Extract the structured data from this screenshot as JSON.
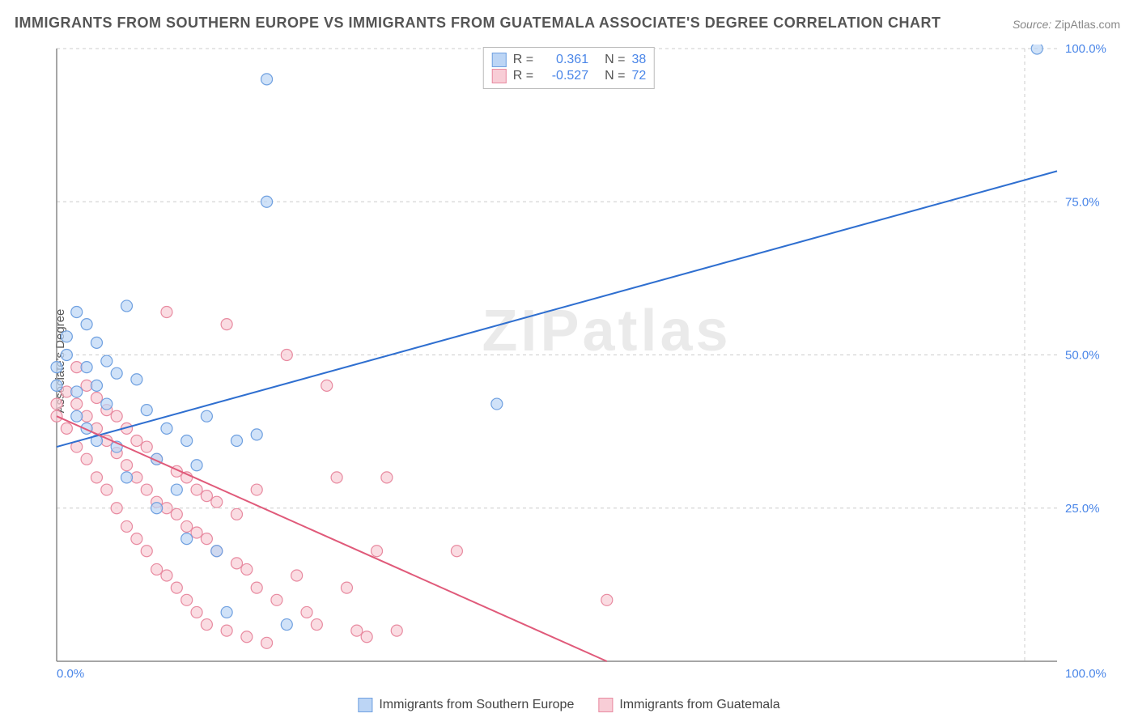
{
  "title": "IMMIGRANTS FROM SOUTHERN EUROPE VS IMMIGRANTS FROM GUATEMALA ASSOCIATE'S DEGREE CORRELATION CHART",
  "source_label": "Source:",
  "source_value": "ZipAtlas.com",
  "y_axis_title": "Associate's Degree",
  "watermark": "ZIPatlas",
  "chart": {
    "type": "scatter",
    "xlim": [
      0,
      100
    ],
    "ylim": [
      0,
      100
    ],
    "x_ticks": [
      0,
      100
    ],
    "y_ticks": [
      25,
      50,
      75,
      100
    ],
    "x_tick_labels": [
      "0.0%",
      "100.0%"
    ],
    "y_tick_labels": [
      "25.0%",
      "50.0%",
      "75.0%",
      "100.0%"
    ],
    "grid_color": "#cccccc",
    "axis_color": "#888888",
    "background_color": "#ffffff",
    "marker_radius": 7,
    "marker_stroke_width": 1.2,
    "line_stroke_width": 2,
    "tick_label_color": "#4a86e8",
    "tick_label_fontsize": 15
  },
  "series": [
    {
      "name": "Immigrants from Southern Europe",
      "fill": "#bcd5f5",
      "stroke": "#6fa0e0",
      "line_color": "#2f6fd0",
      "R": "0.361",
      "N": "38",
      "trend": {
        "x0": 0,
        "y0": 35,
        "x1": 100,
        "y1": 80
      },
      "points": [
        [
          0,
          48
        ],
        [
          0,
          45
        ],
        [
          1,
          53
        ],
        [
          1,
          50
        ],
        [
          2,
          44
        ],
        [
          2,
          40
        ],
        [
          2,
          57
        ],
        [
          3,
          48
        ],
        [
          3,
          38
        ],
        [
          4,
          45
        ],
        [
          4,
          36
        ],
        [
          5,
          49
        ],
        [
          5,
          42
        ],
        [
          6,
          47
        ],
        [
          6,
          35
        ],
        [
          7,
          58
        ],
        [
          7,
          30
        ],
        [
          8,
          46
        ],
        [
          9,
          41
        ],
        [
          10,
          33
        ],
        [
          10,
          25
        ],
        [
          11,
          38
        ],
        [
          12,
          28
        ],
        [
          13,
          36
        ],
        [
          13,
          20
        ],
        [
          14,
          32
        ],
        [
          15,
          40
        ],
        [
          16,
          18
        ],
        [
          17,
          8
        ],
        [
          18,
          36
        ],
        [
          20,
          37
        ],
        [
          21,
          95
        ],
        [
          21,
          75
        ],
        [
          23,
          6
        ],
        [
          44,
          42
        ],
        [
          98,
          100
        ],
        [
          3,
          55
        ],
        [
          4,
          52
        ]
      ]
    },
    {
      "name": "Immigrants from Guatemala",
      "fill": "#f8cdd6",
      "stroke": "#e88aa0",
      "line_color": "#e05a7a",
      "R": "-0.527",
      "N": "72",
      "trend": {
        "x0": 0,
        "y0": 40,
        "x1": 55,
        "y1": 0
      },
      "points": [
        [
          0,
          42
        ],
        [
          0,
          40
        ],
        [
          1,
          38
        ],
        [
          1,
          44
        ],
        [
          2,
          35
        ],
        [
          2,
          42
        ],
        [
          2,
          48
        ],
        [
          3,
          33
        ],
        [
          3,
          40
        ],
        [
          3,
          45
        ],
        [
          4,
          30
        ],
        [
          4,
          38
        ],
        [
          4,
          43
        ],
        [
          5,
          28
        ],
        [
          5,
          36
        ],
        [
          5,
          41
        ],
        [
          6,
          25
        ],
        [
          6,
          34
        ],
        [
          6,
          40
        ],
        [
          7,
          22
        ],
        [
          7,
          32
        ],
        [
          7,
          38
        ],
        [
          8,
          20
        ],
        [
          8,
          30
        ],
        [
          8,
          36
        ],
        [
          9,
          18
        ],
        [
          9,
          28
        ],
        [
          9,
          35
        ],
        [
          10,
          15
        ],
        [
          10,
          26
        ],
        [
          10,
          33
        ],
        [
          11,
          14
        ],
        [
          11,
          25
        ],
        [
          11,
          57
        ],
        [
          12,
          12
        ],
        [
          12,
          24
        ],
        [
          12,
          31
        ],
        [
          13,
          10
        ],
        [
          13,
          22
        ],
        [
          13,
          30
        ],
        [
          14,
          8
        ],
        [
          14,
          21
        ],
        [
          14,
          28
        ],
        [
          15,
          6
        ],
        [
          15,
          20
        ],
        [
          15,
          27
        ],
        [
          16,
          18
        ],
        [
          16,
          26
        ],
        [
          17,
          5
        ],
        [
          17,
          55
        ],
        [
          18,
          16
        ],
        [
          18,
          24
        ],
        [
          19,
          4
        ],
        [
          19,
          15
        ],
        [
          20,
          12
        ],
        [
          20,
          28
        ],
        [
          21,
          3
        ],
        [
          22,
          10
        ],
        [
          23,
          50
        ],
        [
          24,
          14
        ],
        [
          25,
          8
        ],
        [
          26,
          6
        ],
        [
          27,
          45
        ],
        [
          28,
          30
        ],
        [
          29,
          12
        ],
        [
          30,
          5
        ],
        [
          31,
          4
        ],
        [
          32,
          18
        ],
        [
          33,
          30
        ],
        [
          34,
          5
        ],
        [
          40,
          18
        ],
        [
          55,
          10
        ]
      ]
    }
  ],
  "legend_top": {
    "r_label": "R =",
    "n_label": "N ="
  },
  "legend_bottom": {
    "items": [
      "Immigrants from Southern Europe",
      "Immigrants from Guatemala"
    ]
  }
}
